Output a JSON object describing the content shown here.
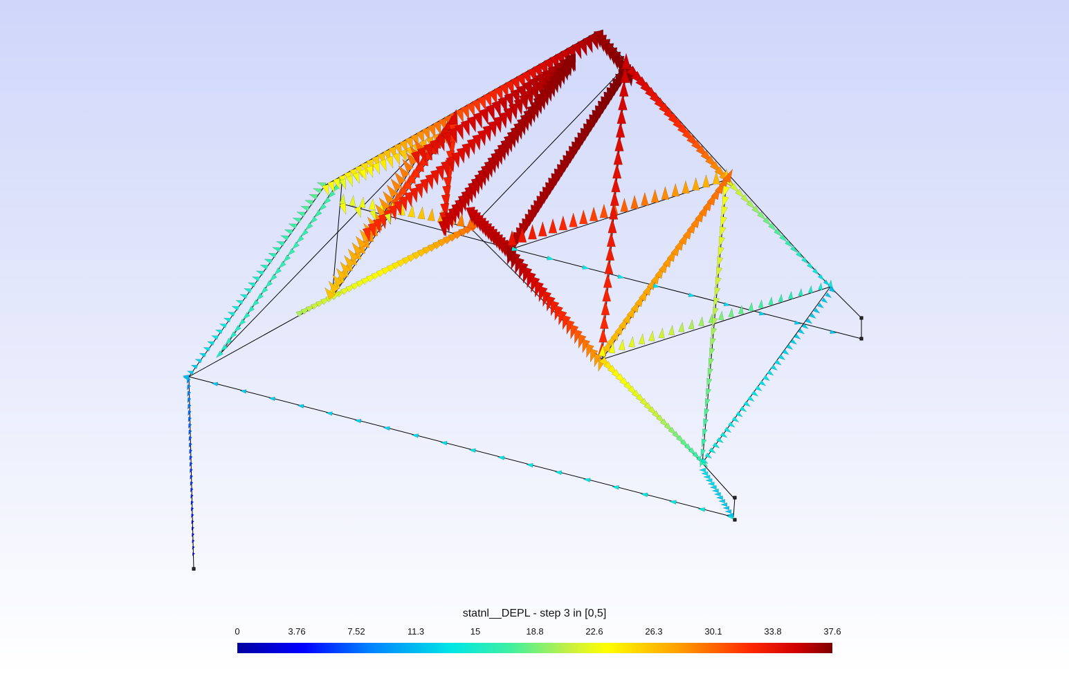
{
  "legend": {
    "title": "statnl__DEPL - step 3 in [0,5]",
    "ticks": [
      "0",
      "3.76",
      "7.52",
      "11.3",
      "15",
      "18.8",
      "22.6",
      "26.3",
      "30.1",
      "33.8",
      "37.6"
    ],
    "min": 0,
    "max": 37.6
  },
  "colormap": [
    "#0000a0",
    "#0000ff",
    "#0080ff",
    "#00e6e6",
    "#40f0a0",
    "#c8f040",
    "#ffff00",
    "#ffa000",
    "#ff2a00",
    "#d00000",
    "#800000"
  ],
  "background": {
    "top": "#cfd6fa",
    "bottom": "#ffffff"
  },
  "mesh_color": "#000000",
  "arrow_glyph": "cone"
}
